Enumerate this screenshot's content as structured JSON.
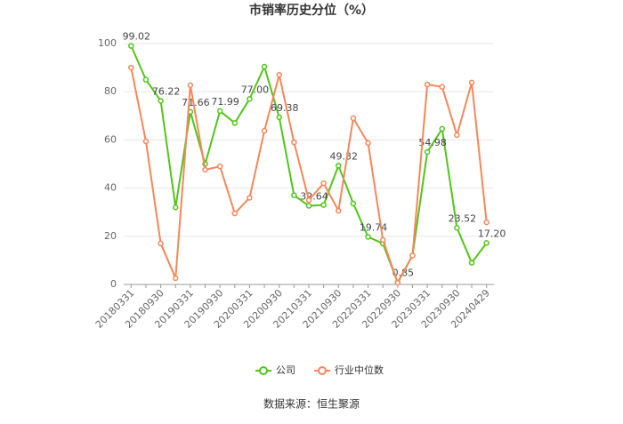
{
  "chart_data": {
    "type": "line",
    "title": "市销率历史分位（%）",
    "categories": [
      "20180331",
      null,
      "20180930",
      null,
      "20190331",
      null,
      "20190930",
      null,
      "20200331",
      null,
      "20200930",
      null,
      "20210331",
      null,
      "20210930",
      null,
      "20220331",
      null,
      "20220930",
      null,
      "20230331",
      null,
      "20230930",
      null,
      "20240429"
    ],
    "series": [
      {
        "name": "公司",
        "color": "#52c41a",
        "values": [
          99.02,
          85,
          76.22,
          32,
          71.66,
          50,
          71.99,
          67,
          77.0,
          90.4,
          69.38,
          37,
          32.64,
          33,
          49.32,
          33.6,
          19.74,
          17,
          0.85,
          12,
          54.98,
          64.6,
          23.52,
          9,
          17.2
        ],
        "value_labels": [
          "99.02",
          null,
          "76.22",
          null,
          "71.66",
          null,
          "71.99",
          null,
          "77.00",
          null,
          "69.38",
          null,
          "32.64",
          null,
          "49.32",
          null,
          "19.74",
          null,
          "0.85",
          null,
          "54.98",
          null,
          "23.52",
          null,
          "17.20"
        ]
      },
      {
        "name": "行业中位数",
        "color": "#f4875a",
        "values": [
          90,
          59.4,
          17,
          2.6,
          82.7,
          47.6,
          49,
          29.5,
          36,
          63.8,
          87,
          59,
          35,
          42,
          30.6,
          69,
          58.7,
          18.5,
          0.7,
          12,
          83,
          82,
          62,
          83.8,
          25.8
        ]
      }
    ],
    "ylim": [
      0,
      100
    ],
    "yticks": [
      0,
      20,
      40,
      60,
      80,
      100
    ],
    "grid": true,
    "source": "数据来源：恒生聚源"
  }
}
